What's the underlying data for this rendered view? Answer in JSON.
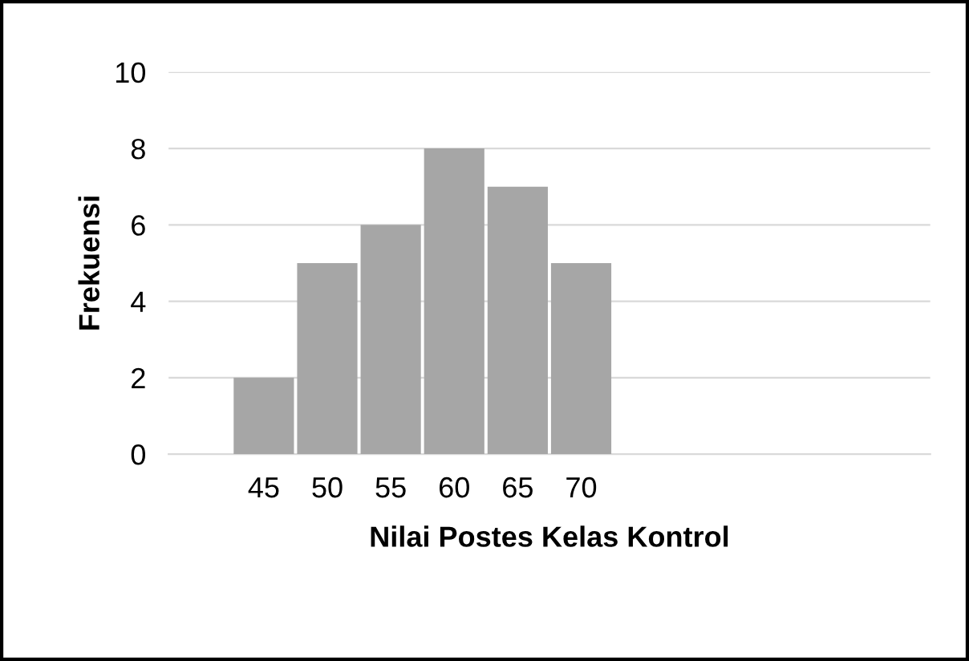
{
  "chart_data": {
    "type": "bar",
    "xlabel": "Nilai Postes Kelas Kontrol",
    "ylabel": "Frekuensi",
    "categories": [
      null,
      "45",
      "50",
      "55",
      "60",
      "65",
      "70",
      null,
      null,
      null,
      null,
      null
    ],
    "values": [
      null,
      2,
      5,
      6,
      8,
      7,
      5,
      null,
      null,
      null,
      null,
      null
    ],
    "color": "#a6a6a6",
    "ylim": [
      0,
      10
    ],
    "yticks": [
      0,
      2,
      4,
      6,
      8,
      10
    ],
    "grid": "y"
  }
}
